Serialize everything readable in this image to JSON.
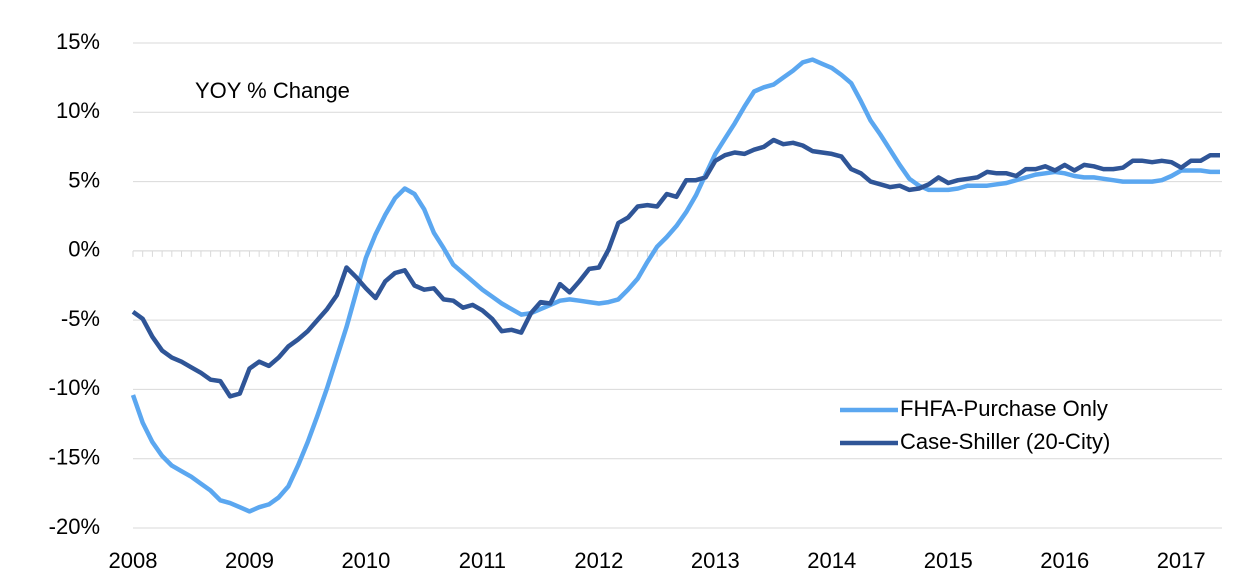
{
  "chart_data": {
    "type": "line",
    "annotation": "YOY % Change",
    "categories": [
      "2008",
      null,
      null,
      null,
      null,
      null,
      null,
      null,
      null,
      null,
      null,
      null,
      "2009",
      null,
      null,
      null,
      null,
      null,
      null,
      null,
      null,
      null,
      null,
      null,
      "2010",
      null,
      null,
      null,
      null,
      null,
      null,
      null,
      null,
      null,
      null,
      null,
      "2011",
      null,
      null,
      null,
      null,
      null,
      null,
      null,
      null,
      null,
      null,
      null,
      "2012",
      null,
      null,
      null,
      null,
      null,
      null,
      null,
      null,
      null,
      null,
      null,
      "2013",
      null,
      null,
      null,
      null,
      null,
      null,
      null,
      null,
      null,
      null,
      null,
      "2014",
      null,
      null,
      null,
      null,
      null,
      null,
      null,
      null,
      null,
      null,
      null,
      "2015",
      null,
      null,
      null,
      null,
      null,
      null,
      null,
      null,
      null,
      null,
      null,
      "2016",
      null,
      null,
      null,
      null,
      null,
      null,
      null,
      null,
      null,
      null,
      null,
      "2017",
      null,
      null,
      null,
      null
    ],
    "series": [
      {
        "name": "FHFA-Purchase Only",
        "color": "#5ba7f0",
        "values": [
          -10.4,
          -12.4,
          -13.8,
          -14.8,
          -15.5,
          -15.9,
          -16.3,
          -16.8,
          -17.3,
          -18.0,
          -18.2,
          -18.5,
          -18.8,
          -18.5,
          -18.3,
          -17.8,
          -17.0,
          -15.5,
          -13.8,
          -11.9,
          -9.9,
          -7.7,
          -5.5,
          -3.0,
          -0.5,
          1.2,
          2.6,
          3.8,
          4.5,
          4.1,
          3.0,
          1.3,
          0.2,
          -1.0,
          -1.6,
          -2.2,
          -2.8,
          -3.3,
          -3.8,
          -4.2,
          -4.6,
          -4.5,
          -4.2,
          -3.9,
          -3.6,
          -3.5,
          -3.6,
          -3.7,
          -3.8,
          -3.7,
          -3.5,
          -2.8,
          -2.0,
          -0.8,
          0.3,
          1.0,
          1.8,
          2.8,
          4.0,
          5.5,
          7.0,
          8.1,
          9.2,
          10.4,
          11.5,
          11.8,
          12.0,
          12.5,
          13.0,
          13.6,
          13.8,
          13.5,
          13.2,
          12.7,
          12.1,
          10.8,
          9.4,
          8.4,
          7.3,
          6.2,
          5.2,
          4.7,
          4.4,
          4.4,
          4.4,
          4.5,
          4.7,
          4.7,
          4.7,
          4.8,
          4.9,
          5.1,
          5.3,
          5.5,
          5.6,
          5.7,
          5.6,
          5.4,
          5.3,
          5.3,
          5.2,
          5.1,
          5.0,
          5.0,
          5.0,
          5.0,
          5.1,
          5.4,
          5.8,
          5.8,
          5.8,
          5.7,
          5.7
        ]
      },
      {
        "name": "Case-Shiller (20-City)",
        "color": "#2f5597",
        "values": [
          -4.4,
          -4.9,
          -6.2,
          -7.2,
          -7.7,
          -8.0,
          -8.4,
          -8.8,
          -9.3,
          -9.4,
          -10.5,
          -10.3,
          -8.5,
          -8.0,
          -8.3,
          -7.7,
          -6.9,
          -6.4,
          -5.8,
          -5.0,
          -4.2,
          -3.2,
          -1.2,
          -1.9,
          -2.7,
          -3.4,
          -2.2,
          -1.6,
          -1.4,
          -2.5,
          -2.8,
          -2.7,
          -3.5,
          -3.6,
          -4.1,
          -3.9,
          -4.3,
          -4.9,
          -5.8,
          -5.7,
          -5.9,
          -4.5,
          -3.7,
          -3.8,
          -2.4,
          -3.0,
          -2.2,
          -1.3,
          -1.2,
          0.1,
          2.0,
          2.4,
          3.2,
          3.3,
          3.2,
          4.1,
          3.9,
          5.1,
          5.1,
          5.3,
          6.5,
          6.9,
          7.1,
          7.0,
          7.3,
          7.5,
          8.0,
          7.7,
          7.8,
          7.6,
          7.2,
          7.1,
          7.0,
          6.8,
          5.9,
          5.6,
          5.0,
          4.8,
          4.6,
          4.7,
          4.4,
          4.5,
          4.8,
          5.3,
          4.9,
          5.1,
          5.2,
          5.3,
          5.7,
          5.6,
          5.6,
          5.4,
          5.9,
          5.9,
          6.1,
          5.8,
          6.2,
          5.8,
          6.2,
          6.1,
          5.9,
          5.9,
          6.0,
          6.5,
          6.5,
          6.4,
          6.5,
          6.4,
          6.0,
          6.5,
          6.5,
          6.9,
          6.9
        ]
      }
    ],
    "ylim": [
      -20,
      15
    ],
    "yticks": [
      {
        "value": -20,
        "label": "-20%"
      },
      {
        "value": -15,
        "label": "-15%"
      },
      {
        "value": -10,
        "label": "-10%"
      },
      {
        "value": -5,
        "label": "-5%"
      },
      {
        "value": 0,
        "label": "0%"
      },
      {
        "value": 5,
        "label": "5%"
      },
      {
        "value": 10,
        "label": "10%"
      },
      {
        "value": 15,
        "label": "15%"
      }
    ],
    "grid": true,
    "legend": "lower right"
  }
}
